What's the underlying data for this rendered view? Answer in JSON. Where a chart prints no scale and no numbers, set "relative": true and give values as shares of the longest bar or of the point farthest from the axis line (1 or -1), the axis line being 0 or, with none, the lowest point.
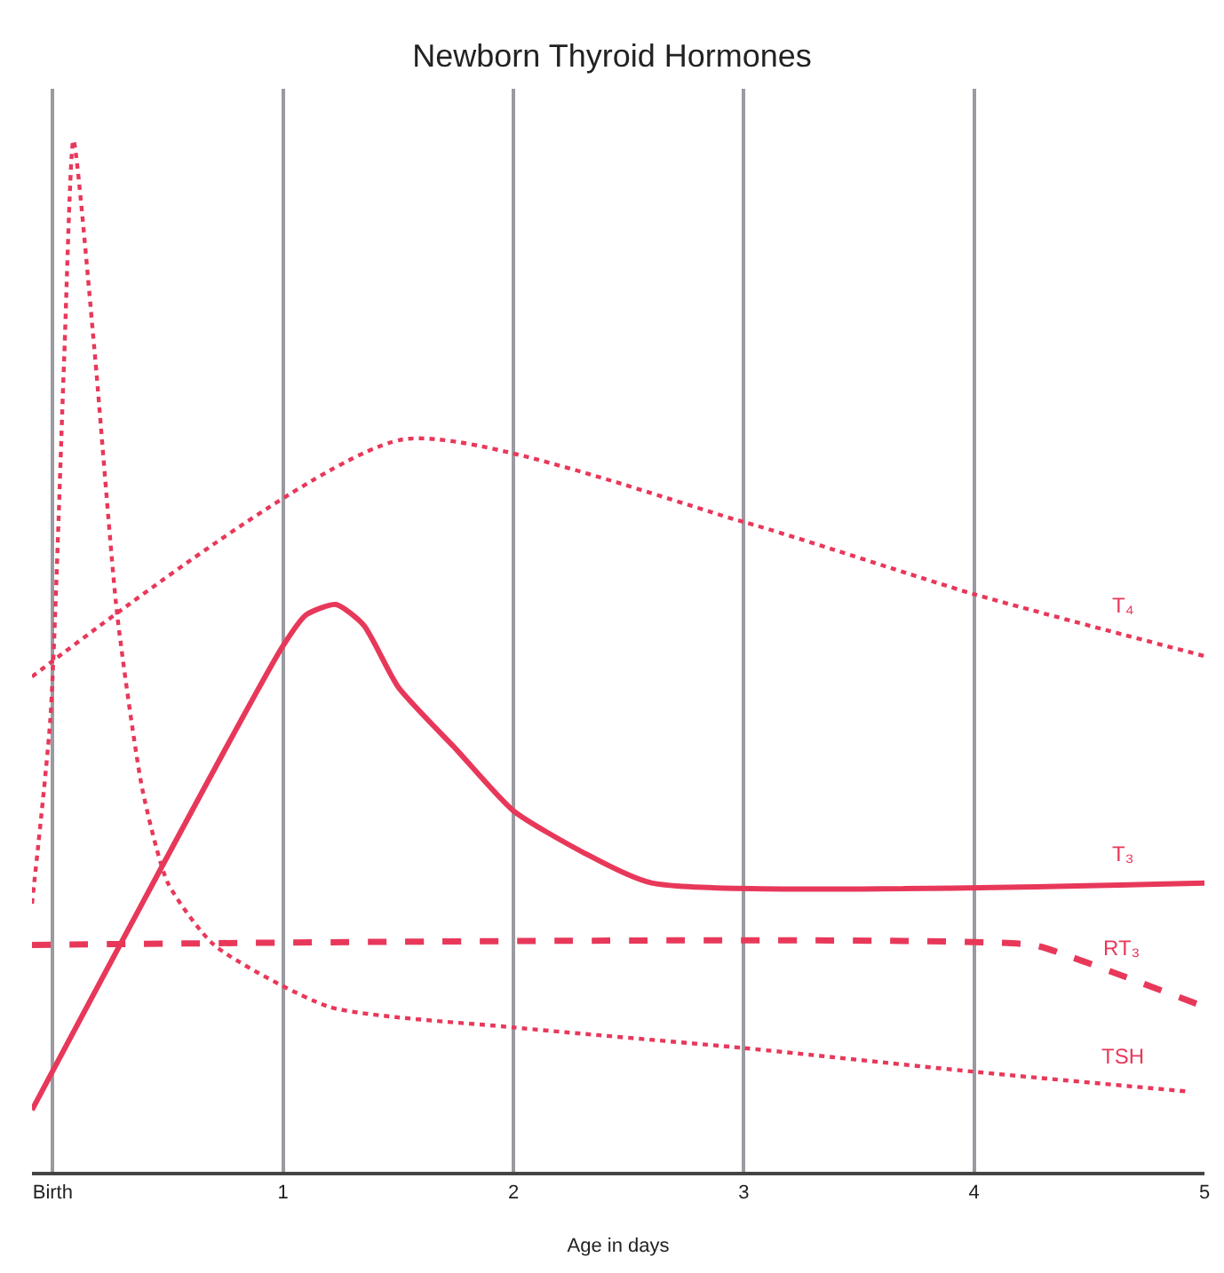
{
  "chart_data": {
    "type": "line",
    "title": "Newborn Thyroid Hormones",
    "xlabel": "Age in days",
    "relative": true,
    "xlim": [
      -0.09,
      5
    ],
    "xticks": [
      {
        "value": 0,
        "label": "Birth"
      },
      1,
      2,
      3,
      4,
      5
    ],
    "grid": "x",
    "legend": false,
    "marker": "none",
    "series": [
      {
        "name": "T₄",
        "color": "#e8385a",
        "line_style": "dotted",
        "x": [
          -0.09,
          1.52,
          3,
          4,
          5
        ],
        "values": [
          0.48,
          0.71,
          0.63,
          0.56,
          0.5
        ]
      },
      {
        "name": "T₃",
        "color": "#e8385a",
        "line_style": "solid",
        "x": [
          -0.09,
          1,
          1.1,
          1.23,
          1.35,
          1.5,
          1.75,
          2,
          2.3,
          2.6,
          5
        ],
        "values": [
          0.06,
          0.51,
          0.54,
          0.55,
          0.53,
          0.47,
          0.41,
          0.35,
          0.31,
          0.28,
          0.28
        ]
      },
      {
        "name": "RT₃",
        "color": "#e8385a",
        "line_style": "dashed",
        "x": [
          -0.09,
          4.25,
          4.4,
          5
        ],
        "values": [
          0.22,
          0.22,
          0.21,
          0.16
        ]
      },
      {
        "name": "TSH",
        "color": "#e8385a",
        "line_style": "dotted",
        "x": [
          -0.09,
          -0.01,
          0.05,
          0.09,
          0.18,
          0.28,
          0.39,
          0.5,
          0.7,
          1.2,
          2,
          3,
          4,
          4.92
        ],
        "values": [
          0.26,
          0.44,
          0.79,
          1.0,
          0.8,
          0.54,
          0.37,
          0.28,
          0.22,
          0.16,
          0.14,
          0.12,
          0.097,
          0.078
        ]
      }
    ]
  }
}
